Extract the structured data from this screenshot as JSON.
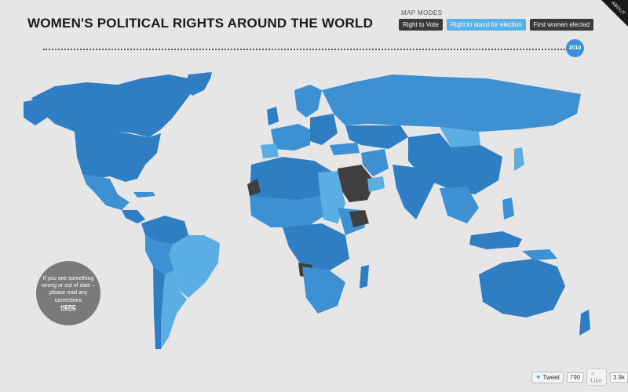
{
  "header": {
    "title": "WOMEN'S POLITICAL RIGHTS AROUND THE WORLD"
  },
  "map_modes": {
    "label": "MAP MODES",
    "buttons": [
      {
        "label": "Right to Vote",
        "active": false
      },
      {
        "label": "Right to stand for election",
        "active": true
      },
      {
        "label": "First women elected",
        "active": false
      }
    ]
  },
  "about": {
    "label": "ABOUT"
  },
  "timeline": {
    "year": "2010"
  },
  "notice": {
    "text": "If you see something wrong or out of date – please mail any corrections",
    "link": "HERE"
  },
  "social": {
    "tweet_label": "Tweet",
    "tweet_count": "790",
    "like_label": "Like",
    "like_count": "3.9k"
  },
  "colors": {
    "dark_blue": "#2f7ec3",
    "mid_blue": "#3d91d3",
    "light_blue": "#5aaee3",
    "dark_gray": "#3f3f3f",
    "background": "#e6e6e6"
  }
}
